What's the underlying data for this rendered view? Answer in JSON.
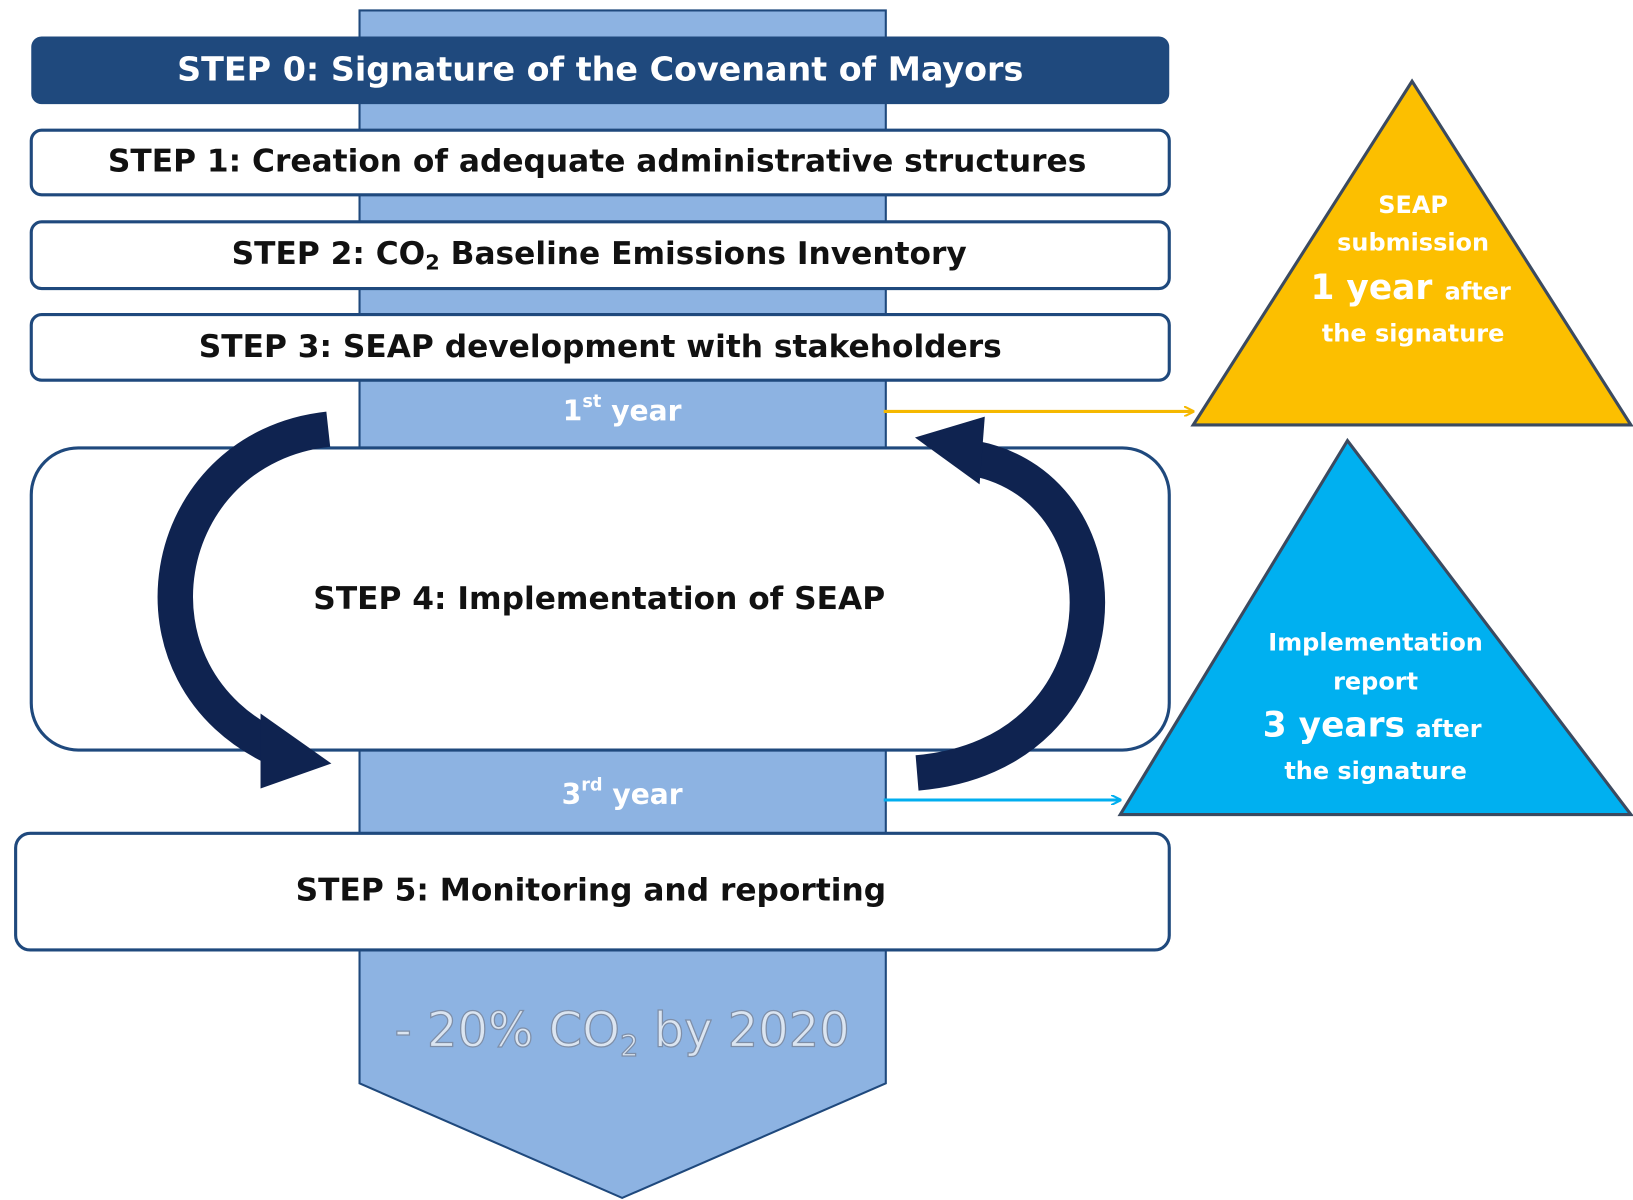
{
  "steps": [
    "STEP 0: Signature of the Covenant of Mayors",
    "STEP 1: Creation of adequate administrative structures",
    {
      "before": "STEP 2: CO",
      "sub": "2",
      "after": " Baseline Emissions Inventory"
    },
    "STEP 3: SEAP development with stakeholders",
    "STEP 4: Implementation of SEAP",
    "STEP 5: Monitoring and reporting"
  ],
  "milestones": [
    {
      "year": {
        "num": "1",
        "sup": "st",
        "text": " year"
      },
      "note": {
        "line1": "SEAP",
        "line2": "submission",
        "big": "1 year",
        "small": "after",
        "line4": "the signature"
      }
    },
    {
      "year": {
        "num": "3",
        "sup": "rd",
        "text": " year"
      },
      "note": {
        "line1": "Implementation",
        "line2": "report",
        "big": "3 years",
        "small": "after",
        "line4": "the signature"
      }
    }
  ],
  "goal": {
    "before": "- 20% CO",
    "sub": "2",
    "after": " by 2020"
  }
}
